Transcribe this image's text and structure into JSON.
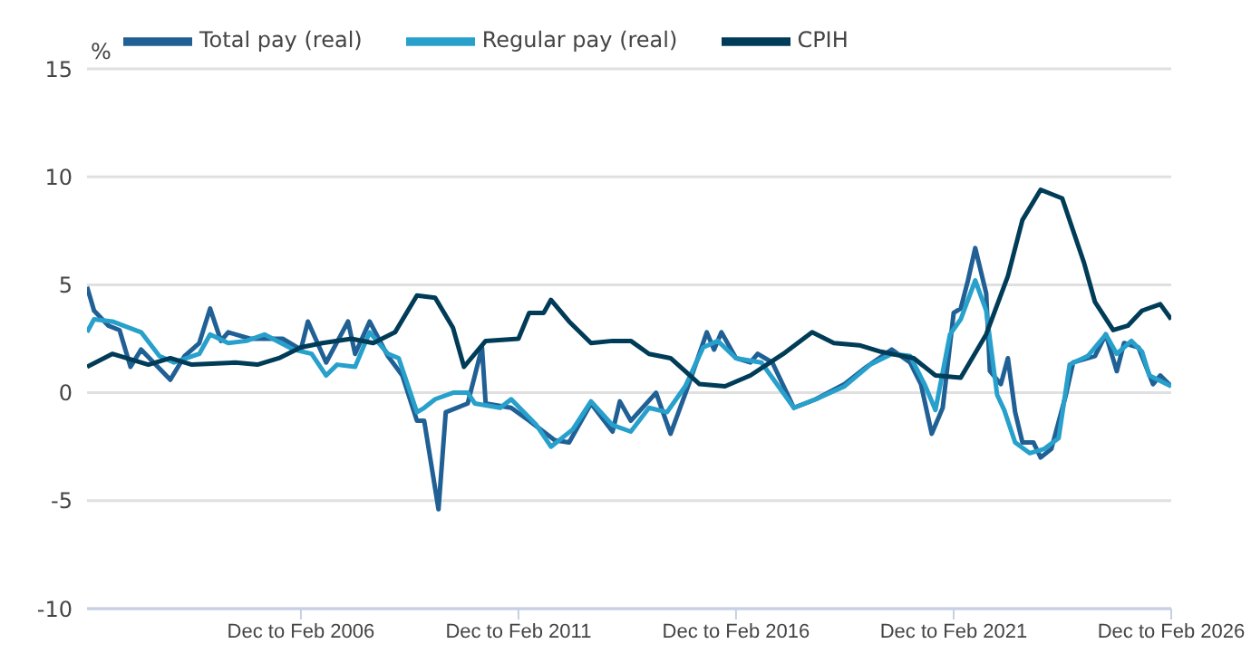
{
  "chart_data": {
    "type": "line",
    "ylabel": "%",
    "xlim": [
      "2001-02",
      "2026-01"
    ],
    "ylim": [
      -10,
      15
    ],
    "yticks": [
      -10,
      -5,
      0,
      5,
      10,
      15
    ],
    "xticks": [
      {
        "value": "2006-01",
        "label": "Dec to Feb 2006"
      },
      {
        "value": "2011-01",
        "label": "Dec to Feb 2011"
      },
      {
        "value": "2016-01",
        "label": "Dec to Feb 2016"
      },
      {
        "value": "2021-01",
        "label": "Dec to Feb 2021"
      },
      {
        "value": "2026-01",
        "label": "Dec to Feb 2026"
      }
    ],
    "grid": "y",
    "legend": "top left",
    "marker": "none",
    "line_style": "solid",
    "series": [
      {
        "name": "Total pay (real)",
        "color": "#206095",
        "x": [
          "2001-02",
          "2001-04",
          "2001-08",
          "2001-11",
          "2002-02",
          "2002-05",
          "2003-01",
          "2003-05",
          "2003-09",
          "2003-12",
          "2004-03",
          "2004-05",
          "2004-11",
          "2005-08",
          "2006-01",
          "2006-03",
          "2006-08",
          "2007-02",
          "2007-04",
          "2007-08",
          "2008-01",
          "2008-05",
          "2008-09",
          "2008-11",
          "2009-03",
          "2009-05",
          "2009-11",
          "2010-03",
          "2010-04",
          "2010-11",
          "2011-04",
          "2011-11",
          "2012-03",
          "2012-09",
          "2013-03",
          "2013-05",
          "2013-08",
          "2014-03",
          "2014-07",
          "2014-12",
          "2015-05",
          "2015-07",
          "2015-09",
          "2016-01",
          "2016-05",
          "2016-07",
          "2016-11",
          "2017-05",
          "2017-11",
          "2018-07",
          "2019-01",
          "2019-08",
          "2020-01",
          "2020-04",
          "2020-07",
          "2020-10",
          "2021-01",
          "2021-03",
          "2021-05",
          "2021-07",
          "2021-10",
          "2021-11",
          "2022-02",
          "2022-04",
          "2022-06",
          "2022-08",
          "2022-11",
          "2023-01",
          "2023-04",
          "2023-08",
          "2023-10",
          "2024-04",
          "2024-07",
          "2024-10",
          "2024-12",
          "2025-04",
          "2025-08",
          "2025-10",
          "2026-01"
        ],
        "values": [
          4.9,
          3.8,
          3.1,
          2.9,
          1.2,
          2.0,
          0.6,
          1.7,
          2.3,
          3.9,
          2.4,
          2.8,
          2.5,
          2.5,
          2.0,
          3.3,
          1.4,
          3.3,
          1.8,
          3.3,
          1.7,
          0.8,
          -1.3,
          -1.3,
          -5.4,
          -0.9,
          -0.5,
          2.1,
          -0.5,
          -0.7,
          -1.3,
          -2.2,
          -2.3,
          -0.5,
          -1.8,
          -0.4,
          -1.3,
          0,
          -1.9,
          0.4,
          2.8,
          2.0,
          2.8,
          1.6,
          1.4,
          1.8,
          1.4,
          -0.7,
          -0.3,
          0.4,
          1.2,
          2.0,
          1.4,
          0.4,
          -1.9,
          -0.7,
          3.7,
          3.9,
          5.2,
          6.7,
          4.6,
          1.0,
          0.4,
          1.6,
          -0.9,
          -2.3,
          -2.3,
          -3.0,
          -2.6,
          -0.1,
          1.4,
          1.7,
          2.7,
          1.0,
          2.3,
          2.1,
          0.4,
          0.8,
          0.3
        ]
      },
      {
        "name": "Regular pay (real)",
        "color": "#27a0cc",
        "x": [
          "2001-02",
          "2001-04",
          "2001-09",
          "2002-05",
          "2002-10",
          "2003-02",
          "2003-09",
          "2003-12",
          "2004-05",
          "2004-10",
          "2005-03",
          "2005-11",
          "2006-04",
          "2006-08",
          "2006-11",
          "2007-04",
          "2007-08",
          "2008-01",
          "2008-04",
          "2008-09",
          "2008-11",
          "2009-02",
          "2009-07",
          "2009-11",
          "2010-01",
          "2010-08",
          "2010-11",
          "2011-06",
          "2011-10",
          "2012-04",
          "2012-09",
          "2013-03",
          "2013-08",
          "2014-01",
          "2014-06",
          "2014-11",
          "2015-04",
          "2015-08",
          "2016-01",
          "2016-08",
          "2017-05",
          "2017-11",
          "2018-07",
          "2019-02",
          "2019-08",
          "2020-01",
          "2020-05",
          "2020-08",
          "2020-12",
          "2021-03",
          "2021-07",
          "2021-10",
          "2022-01",
          "2022-03",
          "2022-06",
          "2022-10",
          "2023-02",
          "2023-06",
          "2023-09",
          "2024-02",
          "2024-07",
          "2024-10",
          "2025-02",
          "2025-05",
          "2025-07",
          "2026-01"
        ],
        "values": [
          2.8,
          3.4,
          3.3,
          2.8,
          1.7,
          1.4,
          1.8,
          2.7,
          2.3,
          2.4,
          2.7,
          2.0,
          1.8,
          0.8,
          1.3,
          1.2,
          2.8,
          1.8,
          1.6,
          -0.9,
          -0.7,
          -0.3,
          0,
          0,
          -0.5,
          -0.7,
          -0.3,
          -1.5,
          -2.5,
          -1.7,
          -0.4,
          -1.5,
          -1.8,
          -0.7,
          -0.9,
          0.3,
          2.1,
          2.4,
          1.6,
          1.4,
          -0.7,
          -0.3,
          0.3,
          1.3,
          1.8,
          1.7,
          0.4,
          -0.8,
          2.7,
          3.4,
          5.2,
          3.8,
          -0.1,
          -0.8,
          -2.3,
          -2.8,
          -2.6,
          -2.1,
          1.3,
          1.7,
          2.7,
          1.8,
          2.4,
          1.9,
          0.8,
          0.3
        ]
      },
      {
        "name": "CPIH",
        "color": "#003c57",
        "x": [
          "2001-02",
          "2001-09",
          "2002-07",
          "2003-01",
          "2003-07",
          "2004-07",
          "2005-01",
          "2005-07",
          "2006-01",
          "2006-07",
          "2007-03",
          "2007-09",
          "2008-03",
          "2008-09",
          "2009-02",
          "2009-07",
          "2009-10",
          "2010-04",
          "2011-01",
          "2011-04",
          "2011-08",
          "2011-10",
          "2012-03",
          "2012-09",
          "2013-03",
          "2013-08",
          "2014-01",
          "2014-07",
          "2015-03",
          "2015-10",
          "2016-05",
          "2017-02",
          "2017-10",
          "2018-04",
          "2018-11",
          "2019-05",
          "2020-02",
          "2020-08",
          "2021-03",
          "2021-10",
          "2022-04",
          "2022-08",
          "2023-01",
          "2023-07",
          "2024-01",
          "2024-04",
          "2024-09",
          "2025-01",
          "2025-05",
          "2025-10",
          "2026-01"
        ],
        "values": [
          1.2,
          1.8,
          1.3,
          1.6,
          1.3,
          1.4,
          1.3,
          1.6,
          2.1,
          2.3,
          2.5,
          2.3,
          2.8,
          4.5,
          4.4,
          3.0,
          1.2,
          2.4,
          2.5,
          3.7,
          3.7,
          4.3,
          3.3,
          2.3,
          2.4,
          2.4,
          1.8,
          1.6,
          0.4,
          0.3,
          0.8,
          1.8,
          2.8,
          2.3,
          2.2,
          1.9,
          1.6,
          0.8,
          0.7,
          2.7,
          5.4,
          8.0,
          9.4,
          9.0,
          6.0,
          4.2,
          2.9,
          3.1,
          3.8,
          4.1,
          3.4
        ]
      }
    ]
  }
}
